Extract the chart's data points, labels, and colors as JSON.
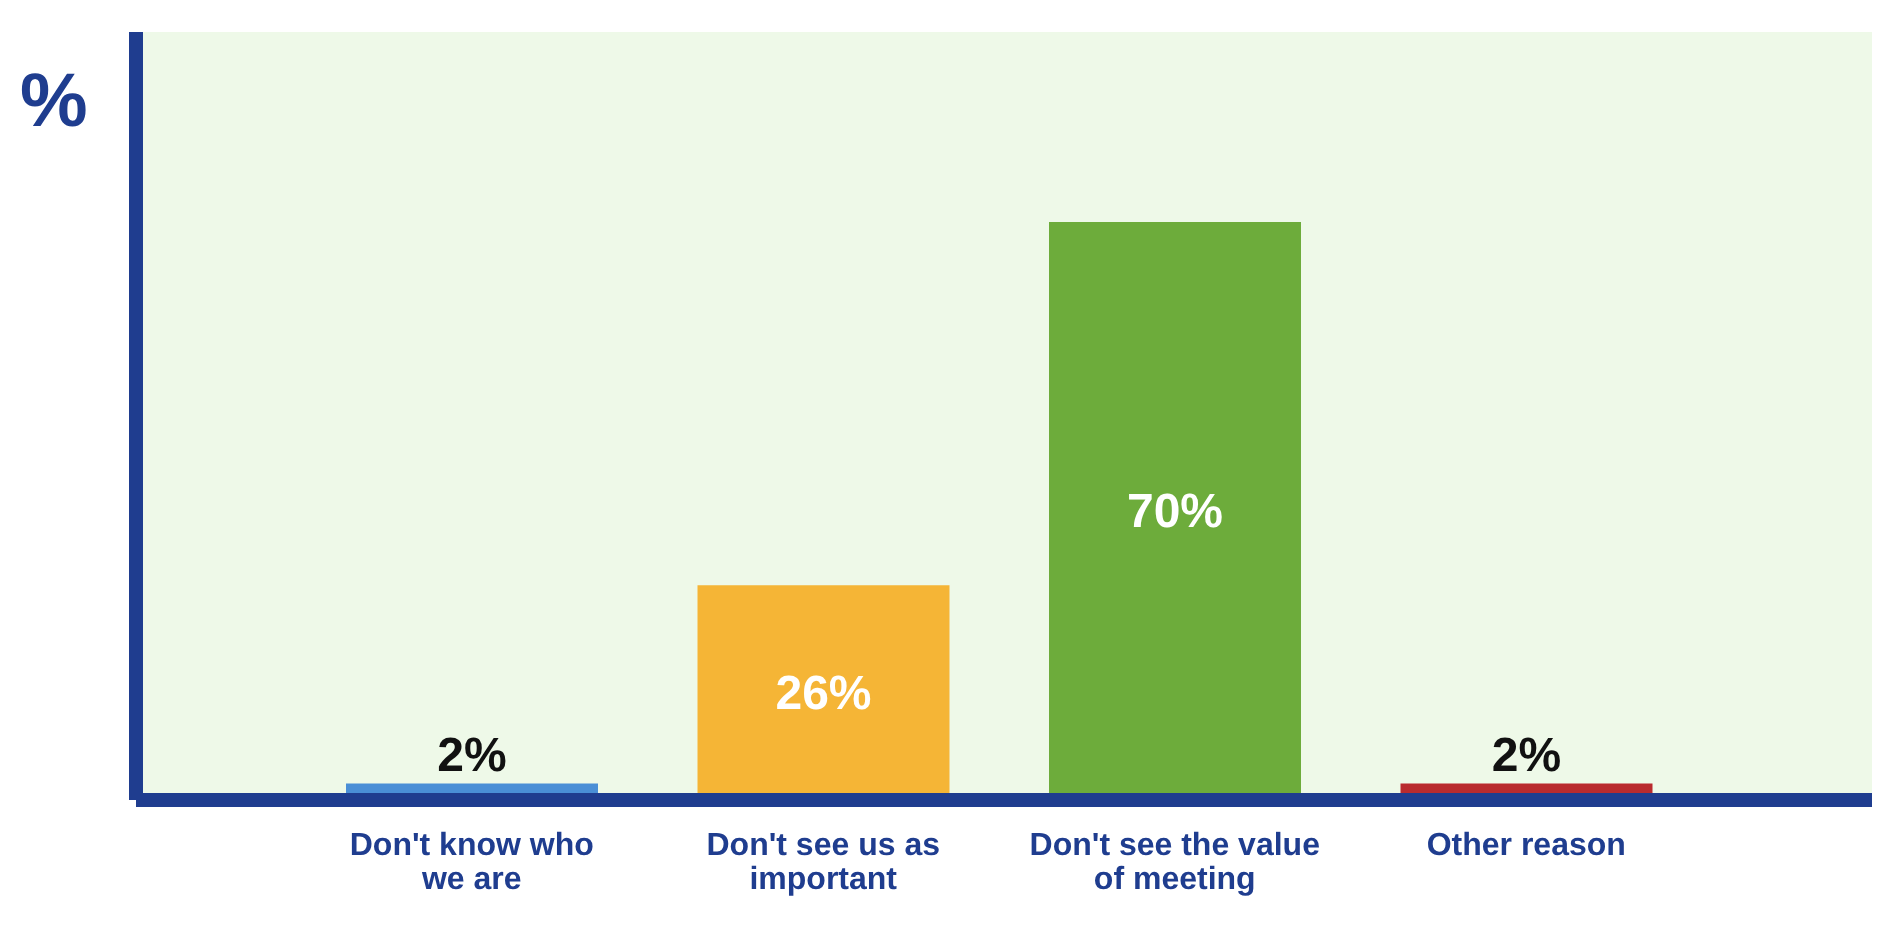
{
  "chart_data": {
    "type": "bar",
    "ylabel": "%",
    "categories": [
      "Don't know who we are",
      "Don't see us as important",
      "Don't see the value of meeting",
      "Other reason"
    ],
    "values": [
      2,
      26,
      70,
      2
    ],
    "colors": [
      "#4a8fd6",
      "#f5b536",
      "#6dac3b",
      "#b92b2e"
    ],
    "value_labels": [
      "2%",
      "26%",
      "70%",
      "2%"
    ],
    "relative": false,
    "grid": false,
    "legend": false
  }
}
